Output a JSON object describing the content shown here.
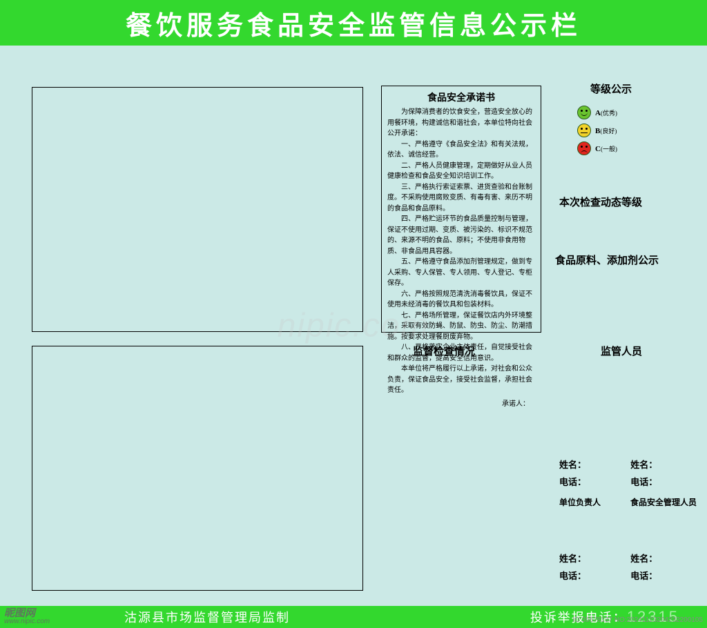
{
  "colors": {
    "header_bg": "#33d82e",
    "page_bg": "#cbe9e6",
    "border": "#000000",
    "text": "#000000",
    "header_text": "#ffffff",
    "grade_a": "#6ac42f",
    "grade_b": "#f2d22a",
    "grade_c": "#e0261e"
  },
  "header": {
    "title": "餐饮服务食品安全监管信息公示栏"
  },
  "pledge": {
    "title": "食品安全承诺书",
    "intro": "为保障消费者的饮食安全，营造安全放心的用餐环境，构建诚信和谐社会，本单位特向社会公开承诺：",
    "items": [
      "一、严格遵守《食品安全法》和有关法规，依法、诚信经营。",
      "二、严格人员健康管理，定期做好从业人员健康检查和食品安全知识培训工作。",
      "三、严格执行索证索票、进货查验和台账制度。不采购使用腐败变质、有毒有害、来历不明的食品和食品原料。",
      "四、严格贮运环节的食品质量控制与管理，保证不使用过期、变质、被污染的、标识不规范的、来源不明的食品、原料；不使用非食用物质、非食品用具容器。",
      "五、严格遵守食品添加剂管理规定，做到专人采购、专人保管、专人领用、专人登记、专柜保存。",
      "六、严格按照规范清洗消毒餐饮具，保证不使用未经消毒的餐饮具和包装材料。",
      "七、严格场所管理，保证餐饮店内外环境整洁，采取有效防蝇、防鼠、防虫、防尘、防潮措施。按要求处理餐厨废弃物。",
      "八、严格落实企业主体责任，自觉接受社会和群众的监督，提高安全信用意识。"
    ],
    "closing": "本单位将严格履行以上承诺，对社会和公众负责，保证食品安全，接受社会监督，承担社会责任。",
    "signer_label": "承诺人："
  },
  "right": {
    "grade_title": "等级公示",
    "grades": [
      {
        "letter": "A",
        "desc": "(优秀)",
        "color": "#6ac42f",
        "face": "smile"
      },
      {
        "letter": "B",
        "desc": "(良好)",
        "color": "#f2d22a",
        "face": "flat"
      },
      {
        "letter": "C",
        "desc": "(一般)",
        "color": "#e0261e",
        "face": "frown"
      }
    ],
    "dynamic_grade": "本次检查动态等级",
    "ingredient": "食品原料、添加剂公示",
    "inspect_label": "监督检查情况",
    "supervisor_label": "监管人员",
    "name_label": "姓名：",
    "phone_label": "电话：",
    "role1": "单位负责人",
    "role2": "食品安全管理人员"
  },
  "footer": {
    "left": "沽源县市场监督管理局监制",
    "right_label": "投诉举报电话：",
    "hotline": "12315"
  },
  "watermarks": {
    "bl_main": "昵图网",
    "bl_sub": "www.nipic.com",
    "center": "nipic.com",
    "br": "ID:35578137  NO:20241123204232200105"
  }
}
